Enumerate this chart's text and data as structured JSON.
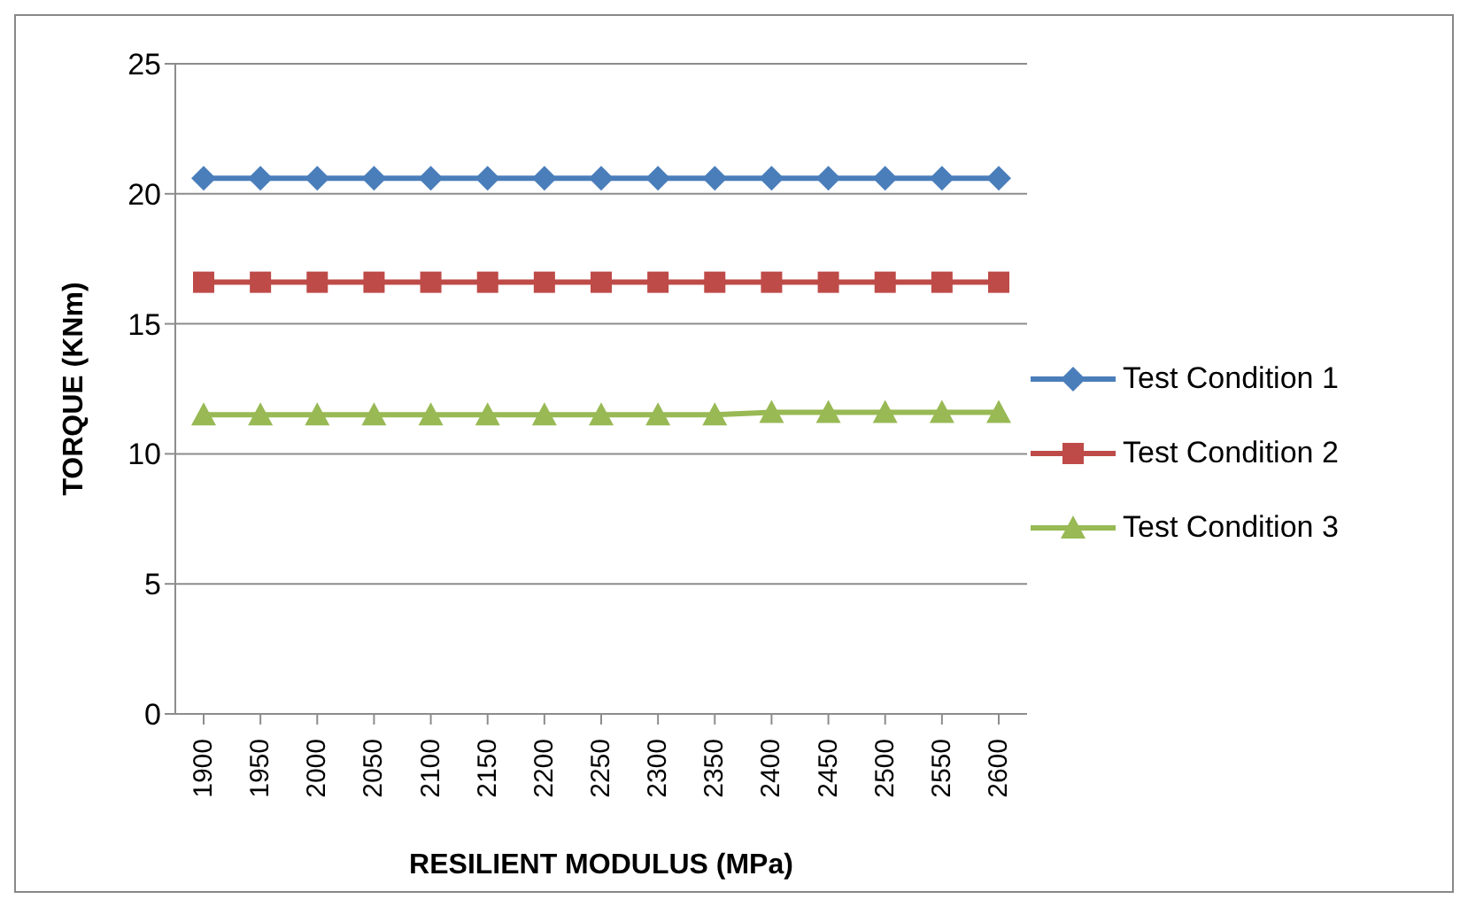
{
  "chart_data": {
    "type": "line",
    "xlabel": "RESILIENT MODULUS (MPa)",
    "ylabel": "TORQUE (KNm)",
    "categories": [
      "1900",
      "1950",
      "2000",
      "2050",
      "2100",
      "2150",
      "2200",
      "2250",
      "2300",
      "2350",
      "2400",
      "2450",
      "2500",
      "2550",
      "2600"
    ],
    "series": [
      {
        "name": "Test Condition 1",
        "color": "#4a7ebb",
        "marker": "diamond",
        "values": [
          20.6,
          20.6,
          20.6,
          20.6,
          20.6,
          20.6,
          20.6,
          20.6,
          20.6,
          20.6,
          20.6,
          20.6,
          20.6,
          20.6,
          20.6
        ]
      },
      {
        "name": "Test Condition 2",
        "color": "#be4b48",
        "marker": "square",
        "values": [
          16.6,
          16.6,
          16.6,
          16.6,
          16.6,
          16.6,
          16.6,
          16.6,
          16.6,
          16.6,
          16.6,
          16.6,
          16.6,
          16.6,
          16.6
        ]
      },
      {
        "name": "Test Condition 3",
        "color": "#98b954",
        "marker": "triangle",
        "values": [
          11.5,
          11.5,
          11.5,
          11.5,
          11.5,
          11.5,
          11.5,
          11.5,
          11.5,
          11.5,
          11.6,
          11.6,
          11.6,
          11.6,
          11.6
        ]
      }
    ],
    "ylim": [
      0,
      25
    ],
    "yticks": [
      0,
      5,
      10,
      15,
      20,
      25
    ],
    "grid": "y",
    "legend": "right",
    "line_style": "solid"
  }
}
